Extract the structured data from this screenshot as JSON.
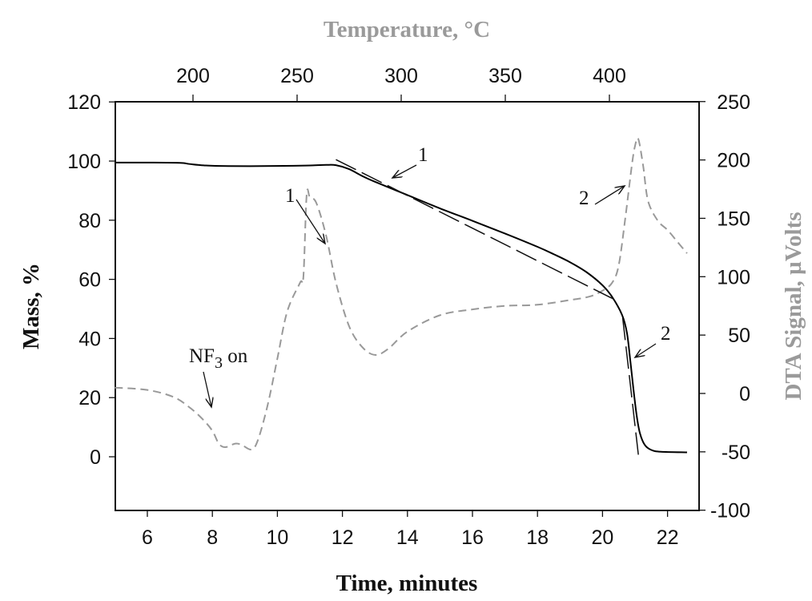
{
  "chart_data": {
    "type": "line",
    "title": "",
    "xlabel": "Time, minutes",
    "ylabel": "Mass, %",
    "y2label": "DTA Signal, µVolts",
    "x2label": "Temperature, °C",
    "xlim": [
      5,
      23
    ],
    "ylim": [
      -18,
      120
    ],
    "y2lim": [
      -100,
      250
    ],
    "x_ticks": [
      6,
      8,
      10,
      12,
      14,
      16,
      18,
      20,
      22
    ],
    "y_ticks": [
      0,
      20,
      40,
      60,
      80,
      100,
      120
    ],
    "y2_ticks": [
      -100,
      -50,
      0,
      50,
      100,
      150,
      200,
      250
    ],
    "x2_ticks": [
      200,
      250,
      300,
      350,
      400
    ],
    "grid": false,
    "legend": null,
    "colors": {
      "mass": "#000000",
      "dta": "#999999",
      "axis2_title": "#9a9a9a"
    },
    "series": [
      {
        "name": "Mass",
        "axis": "left",
        "style": "solid",
        "x": [
          5.0,
          6.0,
          7.0,
          7.3,
          7.8,
          8.5,
          9.5,
          10.5,
          11.0,
          11.5,
          11.8,
          12.2,
          12.6,
          13.0,
          14.0,
          15.0,
          16.0,
          17.0,
          18.0,
          18.5,
          19.0,
          19.5,
          20.0,
          20.3,
          20.6,
          20.75,
          20.85,
          20.95,
          21.05,
          21.15,
          21.3,
          21.5,
          21.8,
          22.6
        ],
        "values": [
          99.5,
          99.5,
          99.4,
          99.0,
          98.5,
          98.3,
          98.3,
          98.4,
          98.5,
          98.7,
          98.6,
          97.3,
          95.0,
          93.0,
          88.5,
          84.0,
          79.8,
          75.5,
          71.0,
          68.5,
          65.8,
          62.5,
          58.0,
          54.0,
          48.0,
          42.0,
          33.0,
          23.0,
          14.0,
          8.0,
          4.0,
          2.3,
          1.7,
          1.5
        ]
      },
      {
        "name": "DTA Signal",
        "axis": "right",
        "style": "dashed",
        "x": [
          5.0,
          6.0,
          6.8,
          7.3,
          7.7,
          8.0,
          8.2,
          8.4,
          8.7,
          8.9,
          9.2,
          9.4,
          9.7,
          10.0,
          10.3,
          10.7,
          10.8,
          10.9,
          11.0,
          11.2,
          11.5,
          11.8,
          12.2,
          12.6,
          13.0,
          13.4,
          14.0,
          15.0,
          16.0,
          17.0,
          18.0,
          19.0,
          19.6,
          20.0,
          20.3,
          20.5,
          20.7,
          20.9,
          21.0,
          21.1,
          21.25,
          21.4,
          21.7,
          22.0,
          22.3,
          22.6
        ],
        "values": [
          5,
          3,
          -3,
          -12,
          -22,
          -32,
          -43,
          -46,
          -43,
          -44,
          -48,
          -40,
          -10,
          30,
          70,
          95,
          100,
          170,
          168,
          163,
          135,
          95,
          58,
          40,
          33,
          38,
          53,
          67,
          72,
          75,
          76,
          80,
          83,
          88,
          95,
          110,
          150,
          195,
          212,
          218,
          195,
          165,
          148,
          140,
          130,
          120
        ]
      },
      {
        "name": "Tangent 1 (slope fit)",
        "axis": "left",
        "style": "long-dash",
        "x": [
          11.8,
          20.4
        ],
        "values": [
          100.5,
          53
        ]
      },
      {
        "name": "Tangent 2 (steep drop fit)",
        "axis": "left",
        "style": "long-dash",
        "x": [
          20.62,
          21.12
        ],
        "values": [
          47,
          -1
        ]
      }
    ],
    "annotations": [
      {
        "text": "1",
        "target": "mass slope",
        "label_pos": [
          13.9,
          103
        ],
        "arrow_to": [
          13.3,
          94.5
        ]
      },
      {
        "text": "1",
        "target": "DTA first exotherm",
        "label_pos": [
          10.9,
          87
        ],
        "arrow_to": [
          11.4,
          72
        ]
      },
      {
        "text": "NF3 on",
        "target": "DTA at NF3 introduction",
        "label_pos": [
          8.2,
          33
        ],
        "arrow_to": [
          8.0,
          16
        ]
      },
      {
        "text": "2",
        "target": "DTA second exotherm",
        "label_pos": [
          19.9,
          86
        ],
        "arrow_to": [
          20.75,
          91
        ]
      },
      {
        "text": "2",
        "target": "mass steep drop",
        "label_pos": [
          21.4,
          40
        ],
        "arrow_to": [
          20.8,
          33
        ]
      }
    ]
  },
  "axes": {
    "x_title": "Time, minutes",
    "y_title": "Mass, %",
    "y2_title": "DTA Signal, µVolts",
    "x2_title": "Temperature, °C"
  },
  "annotations": {
    "a1_mass": "1",
    "a1_dta": "1",
    "nf3_main": "NF",
    "nf3_sub": "3",
    "nf3_tail": " on",
    "a2_dta": "2",
    "a2_mass": "2"
  }
}
